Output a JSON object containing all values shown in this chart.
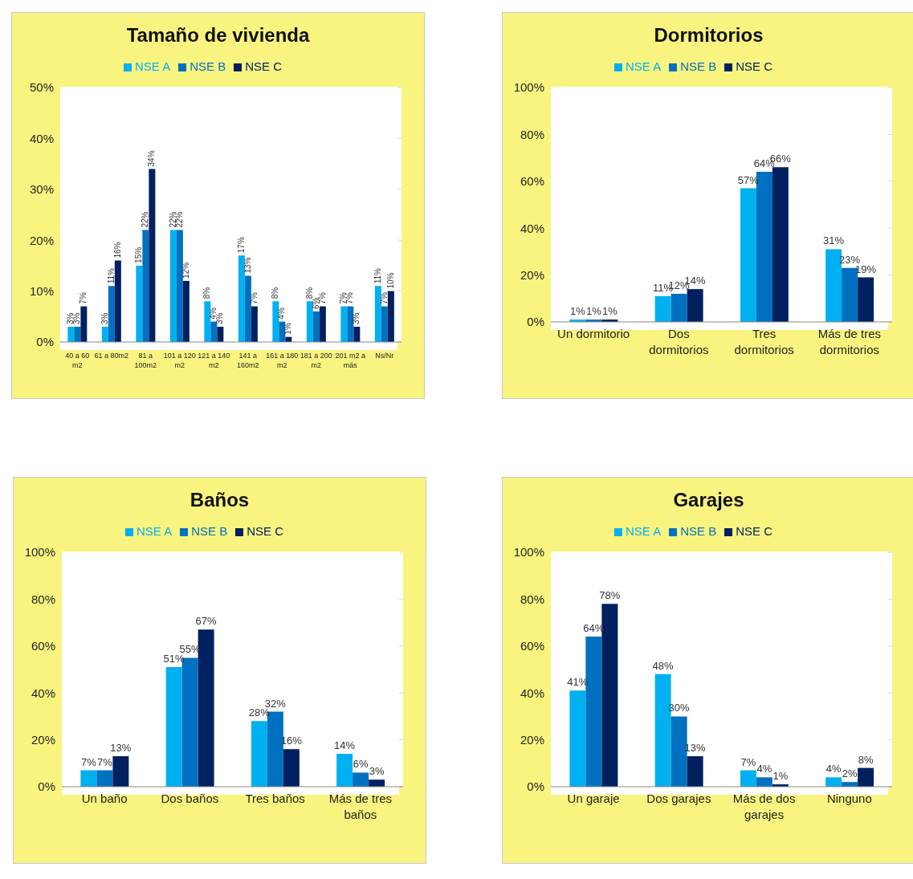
{
  "chart_data": [
    {
      "type": "bar",
      "title": "Tamaño de vivienda",
      "categories": [
        "40 a 60 m2",
        "61 a 80m2",
        "81 a 100m2",
        "101 a 120 m2",
        "121 a 140 m2",
        "141 a 160m2",
        "161 a 180 m2",
        "181 a 200 m2",
        "201 m2 a más",
        "Ns/Nr"
      ],
      "series": [
        {
          "name": "NSE A",
          "color": "#00b0f0",
          "values": [
            3,
            3,
            15,
            22,
            8,
            17,
            8,
            8,
            7,
            11
          ],
          "value_labels": [
            "3%",
            "3%",
            "15%",
            "22%",
            "8%",
            "17%",
            "8%",
            "8%",
            "7%",
            "11%"
          ]
        },
        {
          "name": "NSE B",
          "color": "#0070c0",
          "values": [
            3,
            11,
            22,
            22,
            4,
            13,
            4,
            6,
            7,
            7
          ],
          "value_labels": [
            "3%",
            "11%",
            "22%",
            "22%",
            "4%",
            "13%",
            "4%",
            "6%",
            "7%",
            "7%"
          ]
        },
        {
          "name": "NSE C",
          "color": "#002060",
          "values": [
            7,
            16,
            34,
            12,
            3,
            7,
            1,
            7,
            3,
            10
          ],
          "value_labels": [
            "7%",
            "16%",
            "34%",
            "12%",
            "3%",
            "7%",
            "1%",
            "7%",
            "3%",
            "10%"
          ]
        }
      ],
      "ylim": [
        0,
        50
      ],
      "yticks": [
        {
          "value": 0,
          "label": "0%"
        },
        {
          "value": 10,
          "label": "10%"
        },
        {
          "value": 20,
          "label": "20%"
        },
        {
          "value": 30,
          "label": "30%"
        },
        {
          "value": 40,
          "label": "40%"
        },
        {
          "value": 50,
          "label": "50%"
        }
      ],
      "grid": "y",
      "legend": "top"
    },
    {
      "type": "bar",
      "title": "Dormitorios",
      "categories": [
        "Un dormitorio",
        "Dos dormitorios",
        "Tres dormitorios",
        "Más de tres dormitorios"
      ],
      "series": [
        {
          "name": "NSE A",
          "color": "#00b0f0",
          "values": [
            1,
            11,
            57,
            31
          ],
          "value_labels": [
            "1%",
            "11%",
            "57%",
            "31%"
          ]
        },
        {
          "name": "NSE B",
          "color": "#0070c0",
          "values": [
            1,
            12,
            64,
            23
          ],
          "value_labels": [
            "1%",
            "12%",
            "64%",
            "23%"
          ]
        },
        {
          "name": "NSE C",
          "color": "#002060",
          "values": [
            1,
            14,
            66,
            19
          ],
          "value_labels": [
            "1%",
            "14%",
            "66%",
            "19%"
          ]
        }
      ],
      "ylim": [
        0,
        100
      ],
      "yticks": [
        {
          "value": 0,
          "label": "0%"
        },
        {
          "value": 20,
          "label": "20%"
        },
        {
          "value": 40,
          "label": "40%"
        },
        {
          "value": 60,
          "label": "60%"
        },
        {
          "value": 80,
          "label": "80%"
        },
        {
          "value": 100,
          "label": "100%"
        }
      ],
      "grid": "y",
      "legend": "top"
    },
    {
      "type": "bar",
      "title": "Baños",
      "categories": [
        "Un baño",
        "Dos baños",
        "Tres baños",
        "Más de tres baños"
      ],
      "series": [
        {
          "name": "NSE A",
          "color": "#00b0f0",
          "values": [
            7,
            51,
            28,
            14
          ],
          "value_labels": [
            "7%",
            "51%",
            "28%",
            "14%"
          ]
        },
        {
          "name": "NSE B",
          "color": "#0070c0",
          "values": [
            7,
            55,
            32,
            6
          ],
          "value_labels": [
            "7%",
            "55%",
            "32%",
            "6%"
          ]
        },
        {
          "name": "NSE C",
          "color": "#002060",
          "values": [
            13,
            67,
            16,
            3
          ],
          "value_labels": [
            "13%",
            "67%",
            "16%",
            "3%"
          ]
        }
      ],
      "ylim": [
        0,
        100
      ],
      "yticks": [
        {
          "value": 0,
          "label": "0%"
        },
        {
          "value": 20,
          "label": "20%"
        },
        {
          "value": 40,
          "label": "40%"
        },
        {
          "value": 60,
          "label": "60%"
        },
        {
          "value": 80,
          "label": "80%"
        },
        {
          "value": 100,
          "label": "100%"
        }
      ],
      "grid": "y",
      "legend": "top"
    },
    {
      "type": "bar",
      "title": "Garajes",
      "categories": [
        "Un garaje",
        "Dos garajes",
        "Más de dos garajes",
        "Ninguno"
      ],
      "series": [
        {
          "name": "NSE A",
          "color": "#00b0f0",
          "values": [
            41,
            48,
            7,
            4
          ],
          "value_labels": [
            "41%",
            "48%",
            "7%",
            "4%"
          ]
        },
        {
          "name": "NSE B",
          "color": "#0070c0",
          "values": [
            64,
            30,
            4,
            2
          ],
          "value_labels": [
            "64%",
            "30%",
            "4%",
            "2%"
          ]
        },
        {
          "name": "NSE C",
          "color": "#002060",
          "values": [
            78,
            13,
            1,
            8
          ],
          "value_labels": [
            "78%",
            "13%",
            "1%",
            "8%"
          ]
        }
      ],
      "ylim": [
        0,
        100
      ],
      "yticks": [
        {
          "value": 0,
          "label": "0%"
        },
        {
          "value": 20,
          "label": "20%"
        },
        {
          "value": 40,
          "label": "40%"
        },
        {
          "value": 60,
          "label": "60%"
        },
        {
          "value": 80,
          "label": "80%"
        },
        {
          "value": 100,
          "label": "100%"
        }
      ],
      "grid": "y",
      "legend": "top"
    }
  ]
}
